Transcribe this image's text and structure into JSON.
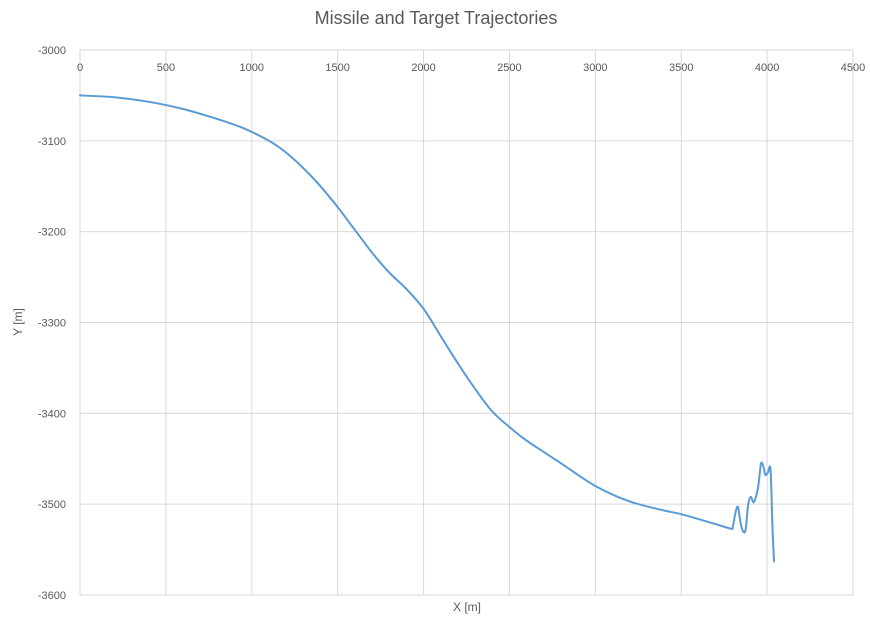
{
  "chart_data": {
    "type": "line",
    "title": "Missile and Target Trajectories",
    "xlabel": "X [m]",
    "ylabel": "Y [m]",
    "xlim": [
      0,
      4500
    ],
    "ylim": [
      -3600,
      -3000
    ],
    "x_ticks": [
      0,
      500,
      1000,
      1500,
      2000,
      2500,
      3000,
      3500,
      4000,
      4500
    ],
    "y_ticks": [
      -3000,
      -3100,
      -3200,
      -3300,
      -3400,
      -3500,
      -3600
    ],
    "grid": true,
    "legend": "none",
    "series_color": "#5b9bd5",
    "grid_color": "#d9d9d9",
    "text_color": "#595959",
    "series": [
      {
        "points": [
          [
            0,
            -3050
          ],
          [
            200,
            -3052
          ],
          [
            400,
            -3057
          ],
          [
            600,
            -3065
          ],
          [
            800,
            -3076
          ],
          [
            950,
            -3086
          ],
          [
            1100,
            -3100
          ],
          [
            1200,
            -3113
          ],
          [
            1300,
            -3130
          ],
          [
            1400,
            -3150
          ],
          [
            1500,
            -3173
          ],
          [
            1600,
            -3198
          ],
          [
            1700,
            -3223
          ],
          [
            1800,
            -3245
          ],
          [
            1900,
            -3263
          ],
          [
            2000,
            -3285
          ],
          [
            2100,
            -3315
          ],
          [
            2200,
            -3345
          ],
          [
            2300,
            -3373
          ],
          [
            2400,
            -3398
          ],
          [
            2500,
            -3415
          ],
          [
            2600,
            -3430
          ],
          [
            2800,
            -3455
          ],
          [
            3000,
            -3480
          ],
          [
            3200,
            -3497
          ],
          [
            3400,
            -3507
          ],
          [
            3500,
            -3511
          ],
          [
            3700,
            -3522
          ],
          [
            3790,
            -3527
          ],
          [
            3800,
            -3525
          ],
          [
            3815,
            -3510
          ],
          [
            3830,
            -3503
          ],
          [
            3845,
            -3520
          ],
          [
            3860,
            -3530
          ],
          [
            3875,
            -3528
          ],
          [
            3890,
            -3500
          ],
          [
            3905,
            -3492
          ],
          [
            3920,
            -3498
          ],
          [
            3935,
            -3492
          ],
          [
            3950,
            -3478
          ],
          [
            3965,
            -3455
          ],
          [
            3980,
            -3460
          ],
          [
            3990,
            -3468
          ],
          [
            4005,
            -3465
          ],
          [
            4020,
            -3462
          ],
          [
            4030,
            -3520
          ],
          [
            4040,
            -3563
          ]
        ]
      }
    ]
  }
}
